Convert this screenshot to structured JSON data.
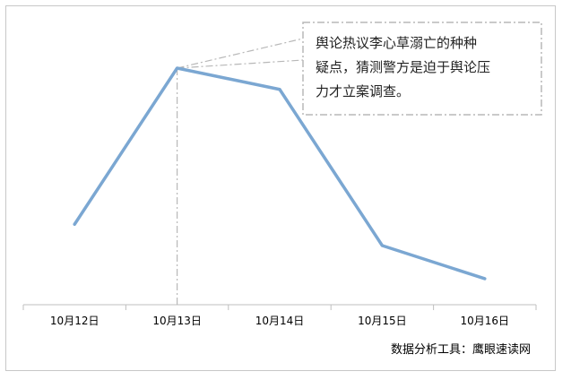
{
  "chart_data": {
    "type": "line",
    "categories": [
      "10月12日",
      "10月13日",
      "10月14日",
      "10月15日",
      "10月16日"
    ],
    "values": [
      34,
      100,
      91,
      25,
      11
    ],
    "ylim": [
      0,
      105
    ],
    "grid": false,
    "legend": "none",
    "series": [
      {
        "values": [
          34,
          100,
          91,
          25,
          11
        ],
        "color": "#7BA7D2"
      }
    ],
    "annotations": [
      {
        "category": "10月13日",
        "lines": [
          "舆论热议李心草溺亡的种种",
          "疑点，猜测警方是迫于舆论压",
          "力才立案调查。"
        ]
      }
    ]
  },
  "source_note": "数据分析工具：鹰眼速读网",
  "colors": {
    "line": "#7BA7D2",
    "axis": "#bfbfbf",
    "callout_border": "#b8b8b8",
    "leader": "#b8b8b8"
  }
}
